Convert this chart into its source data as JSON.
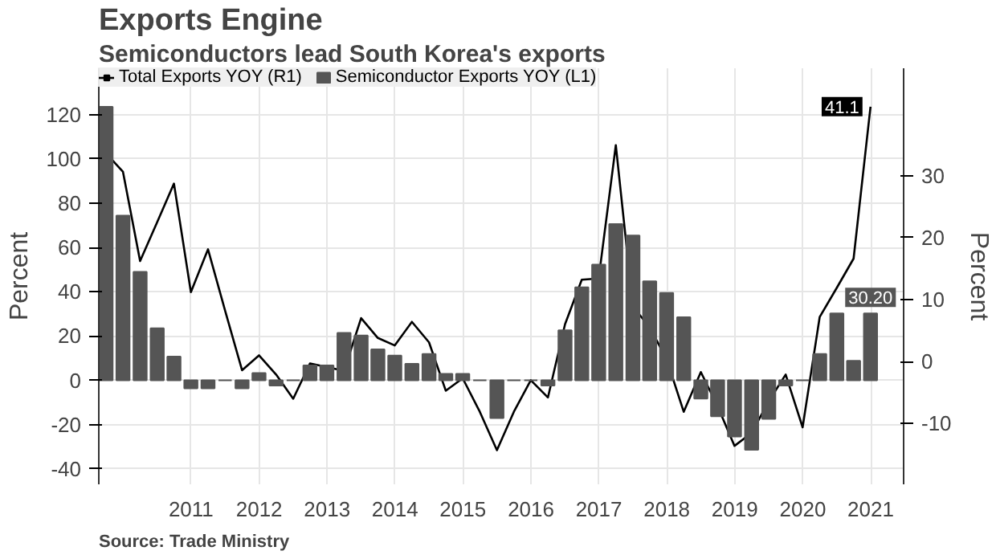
{
  "chart_data": {
    "type": "bar",
    "title": "Exports Engine",
    "subtitle": "Semiconductors lead South Korea's exports",
    "ylabel": "Percent",
    "y2label": "Percent",
    "annotations": [
      "Source: Trade Ministry"
    ],
    "x": [
      "2010-03-31",
      "2010-06-30",
      "2010-09-30",
      "2010-12-31",
      "2011-03-31",
      "2011-06-30",
      "2011-09-30",
      "2011-12-31",
      "2012-03-31",
      "2012-06-30",
      "2012-09-30",
      "2012-12-31",
      "2013-03-31",
      "2013-06-30",
      "2013-09-30",
      "2013-12-31",
      "2014-03-31",
      "2014-06-30",
      "2014-09-30",
      "2014-12-31",
      "2015-03-31",
      "2015-06-30",
      "2015-09-30",
      "2015-12-31",
      "2016-03-31",
      "2016-06-30",
      "2016-09-30",
      "2016-12-31",
      "2017-03-31",
      "2017-06-30",
      "2017-09-30",
      "2017-12-31",
      "2018-03-31",
      "2018-06-30",
      "2018-09-30",
      "2018-12-31",
      "2019-03-31",
      "2019-06-30",
      "2019-09-30",
      "2019-12-31",
      "2020-03-31",
      "2020-06-30",
      "2020-09-30",
      "2020-12-31",
      "2021-03-31",
      "2021-06-30"
    ],
    "series": [
      {
        "name": "Total Exports YOY (R1)",
        "type": "line",
        "axis": "y2",
        "color": "#000000",
        "values": [
          33.6,
          30.6,
          16.2,
          22.5,
          28.7,
          11.2,
          18.1,
          8.2,
          -1.4,
          1,
          -2.1,
          -6,
          -0.3,
          -0.9,
          -1.5,
          7,
          3.8,
          2.6,
          6.4,
          3.1,
          -4.7,
          -2.7,
          -8.1,
          -14.3,
          -8.1,
          -3,
          -5.8,
          6,
          13.2,
          13.4,
          34.9,
          8.9,
          5.5,
          0.4,
          -8.1,
          -1.7,
          -7.2,
          -13.6,
          -11.5,
          -6.4,
          -2.1,
          -10.6,
          7.2,
          11.9,
          16.6,
          41.1
        ],
        "value_labels": [
          null,
          null,
          null,
          null,
          null,
          null,
          null,
          null,
          null,
          null,
          null,
          null,
          null,
          null,
          null,
          null,
          null,
          null,
          null,
          null,
          null,
          null,
          null,
          null,
          null,
          null,
          null,
          null,
          null,
          null,
          null,
          null,
          null,
          null,
          null,
          null,
          null,
          null,
          null,
          null,
          null,
          null,
          null,
          null,
          null,
          "41.1"
        ]
      },
      {
        "name": "Semiconductor Exports YOY (L1)",
        "color": "#555555",
        "values": [
          123.6,
          74.4,
          49,
          23.5,
          10.7,
          -3.6,
          -3.6,
          0,
          -3.6,
          3.3,
          -2.4,
          0,
          6.7,
          6.7,
          21.4,
          20.2,
          14,
          11.2,
          7.4,
          11.9,
          2.9,
          2.9,
          0,
          -17.1,
          0,
          0,
          -2.4,
          22.6,
          42,
          52.3,
          70.6,
          65.4,
          44.7,
          39.5,
          28.5,
          -8.3,
          -16.2,
          -25.4,
          -31.4,
          -17.4,
          -2.4,
          0,
          11.9,
          30.2,
          8.8,
          30.2
        ],
        "value_labels": [
          null,
          null,
          null,
          null,
          null,
          null,
          null,
          null,
          null,
          null,
          null,
          null,
          null,
          null,
          null,
          null,
          null,
          null,
          null,
          null,
          null,
          null,
          null,
          null,
          null,
          null,
          null,
          null,
          null,
          null,
          null,
          null,
          null,
          null,
          null,
          null,
          null,
          null,
          null,
          null,
          null,
          null,
          null,
          null,
          null,
          "30.20"
        ]
      }
    ],
    "xlim": [
      "2010-02-20",
      "2021-12-25"
    ],
    "xticks": [
      {
        "value": "2011-07-01",
        "label": "2011"
      },
      {
        "value": "2012-07-01",
        "label": "2012"
      },
      {
        "value": "2013-07-01",
        "label": "2013"
      },
      {
        "value": "2014-07-01",
        "label": "2014"
      },
      {
        "value": "2015-07-01",
        "label": "2015"
      },
      {
        "value": "2016-07-01",
        "label": "2016"
      },
      {
        "value": "2017-07-01",
        "label": "2017"
      },
      {
        "value": "2018-07-01",
        "label": "2018"
      },
      {
        "value": "2019-07-01",
        "label": "2019"
      },
      {
        "value": "2020-07-01",
        "label": "2020"
      },
      {
        "value": "2021-07-01",
        "label": "2021"
      }
    ],
    "ylim": [
      -47,
      141
    ],
    "yticks": [
      -40,
      -20,
      0,
      20,
      40,
      60,
      80,
      100,
      120
    ],
    "y2lim": [
      -19.8,
      47.3
    ],
    "y2ticks": [
      -10,
      0,
      10,
      20,
      30
    ],
    "grid": true,
    "legend": "top left"
  }
}
